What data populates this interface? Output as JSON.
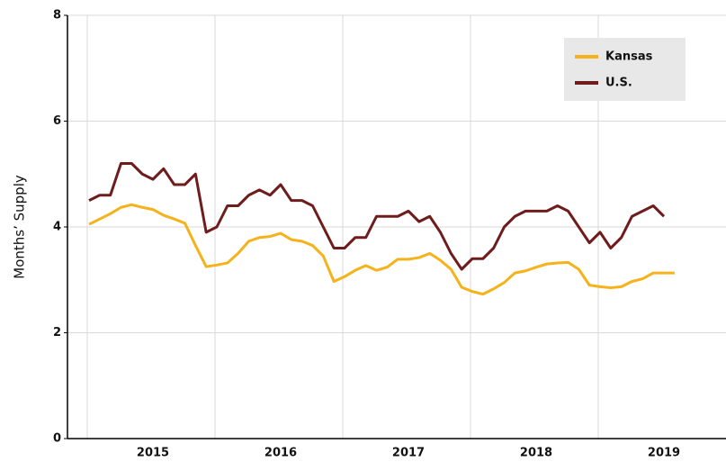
{
  "chart_data": {
    "type": "line",
    "y_label": "Months’ Supply",
    "categories": [
      null,
      null,
      null,
      null,
      null,
      null,
      "2015",
      null,
      null,
      null,
      null,
      null,
      null,
      null,
      null,
      null,
      null,
      null,
      "2016",
      null,
      null,
      null,
      null,
      null,
      null,
      null,
      null,
      null,
      null,
      null,
      "2017",
      null,
      null,
      null,
      null,
      null,
      null,
      null,
      null,
      null,
      null,
      null,
      "2018",
      null,
      null,
      null,
      null,
      null,
      null,
      null,
      null,
      null,
      null,
      null,
      "2019",
      null
    ],
    "series": [
      {
        "name": "Kansas",
        "color": "#f5b21b",
        "values": [
          4.05,
          4.15,
          4.25,
          4.37,
          4.42,
          4.37,
          4.33,
          4.22,
          4.15,
          4.07,
          3.65,
          3.25,
          3.28,
          3.32,
          3.5,
          3.73,
          3.8,
          3.82,
          3.88,
          3.76,
          3.73,
          3.65,
          3.45,
          2.97,
          3.06,
          3.18,
          3.27,
          3.18,
          3.24,
          3.39,
          3.39,
          3.42,
          3.5,
          3.37,
          3.2,
          2.86,
          2.78,
          2.73,
          2.83,
          2.95,
          3.13,
          3.17,
          3.24,
          3.3,
          3.32,
          3.33,
          3.2,
          2.9,
          2.87,
          2.85,
          2.87,
          2.97,
          3.02,
          3.13,
          3.13,
          3.13
        ]
      },
      {
        "name": "U.S.",
        "color": "#6e1c1c",
        "values": [
          4.5,
          4.6,
          4.6,
          5.2,
          5.2,
          5.0,
          4.9,
          5.1,
          4.8,
          4.8,
          5.0,
          3.9,
          4.0,
          4.4,
          4.4,
          4.6,
          4.7,
          4.6,
          4.8,
          4.5,
          4.5,
          4.4,
          4.0,
          3.6,
          3.6,
          3.8,
          3.8,
          4.2,
          4.2,
          4.2,
          4.3,
          4.1,
          4.2,
          3.9,
          3.5,
          3.2,
          3.4,
          3.4,
          3.6,
          4.0,
          4.2,
          4.3,
          4.3,
          4.3,
          4.4,
          4.3,
          4.0,
          3.7,
          3.9,
          3.6,
          3.8,
          4.2,
          4.3,
          4.4,
          4.2,
          null
        ]
      }
    ],
    "ylim": [
      0,
      8
    ],
    "yticks": [
      0,
      2,
      4,
      6,
      8
    ],
    "grid": true,
    "legend": "upper right"
  }
}
